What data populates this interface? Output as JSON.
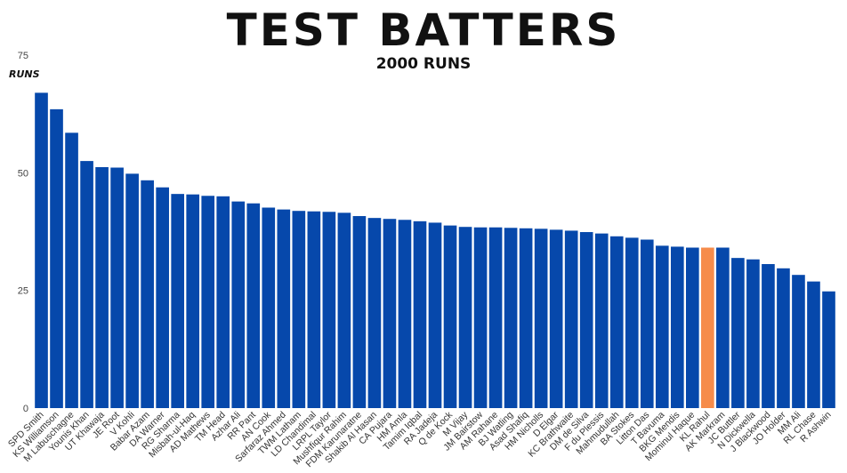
{
  "header": {
    "title": "TEST BATTERS",
    "subtitle": "2000 RUNS"
  },
  "colors": {
    "bar": "#0648ab",
    "highlight": "#f68c4b"
  },
  "chart_data": {
    "type": "bar",
    "title": "TEST BATTERS",
    "subtitle": "2000 RUNS",
    "ylabel": "RUNS",
    "xlabel": "",
    "ylim": [
      0,
      75
    ],
    "yticks": [
      0,
      25,
      50,
      75
    ],
    "grid": false,
    "highlight_index": 44,
    "categories": [
      "SPD Smith",
      "KS Williamson",
      "M Labuschagne",
      "Younis Khan",
      "UT Khawaja",
      "JE Root",
      "V Kohli",
      "Babar Azam",
      "DA Warner",
      "RG Sharma",
      "Misbah-ul-Haq",
      "AD Mathews",
      "TM Head",
      "Azhar Ali",
      "RR Pant",
      "AN Cook",
      "Sarfaraz Ahmed",
      "TWM Latham",
      "LD Chandimal",
      "LRPL Taylor",
      "Mushfiqur Rahim",
      "FDM Karunaratne",
      "Shakib Al Hasan",
      "CA Pujara",
      "HM Amla",
      "Tamim Iqbal",
      "RA Jadeja",
      "Q de Kock",
      "M Vijay",
      "JM Bairstow",
      "AM Rahane",
      "BJ Watling",
      "Asad Shafiq",
      "HM Nicholls",
      "D Elgar",
      "KC Brathwaite",
      "DM de Silva",
      "F du Plessis",
      "Mahmudullah",
      "BA Stokes",
      "Litton Das",
      "T Bavuma",
      "BKG Mendis",
      "Mominul Haque",
      "KL Rahul",
      "AK Markram",
      "JC Buttler",
      "N Dickwella",
      "J Blackwood",
      "JO Holder",
      "MM Ali",
      "RL Chase",
      "R Ashwin"
    ],
    "values": [
      67.0,
      63.5,
      58.5,
      52.5,
      51.2,
      51.1,
      49.8,
      48.4,
      46.9,
      45.5,
      45.4,
      45.1,
      45.0,
      43.9,
      43.5,
      42.6,
      42.2,
      41.9,
      41.8,
      41.7,
      41.5,
      40.8,
      40.4,
      40.2,
      40.0,
      39.7,
      39.4,
      38.8,
      38.5,
      38.4,
      38.4,
      38.3,
      38.2,
      38.1,
      37.9,
      37.7,
      37.4,
      37.1,
      36.5,
      36.2,
      35.8,
      34.5,
      34.3,
      34.1,
      34.1,
      34.1,
      31.9,
      31.6,
      30.6,
      29.7,
      28.3,
      26.9,
      24.8
    ]
  }
}
